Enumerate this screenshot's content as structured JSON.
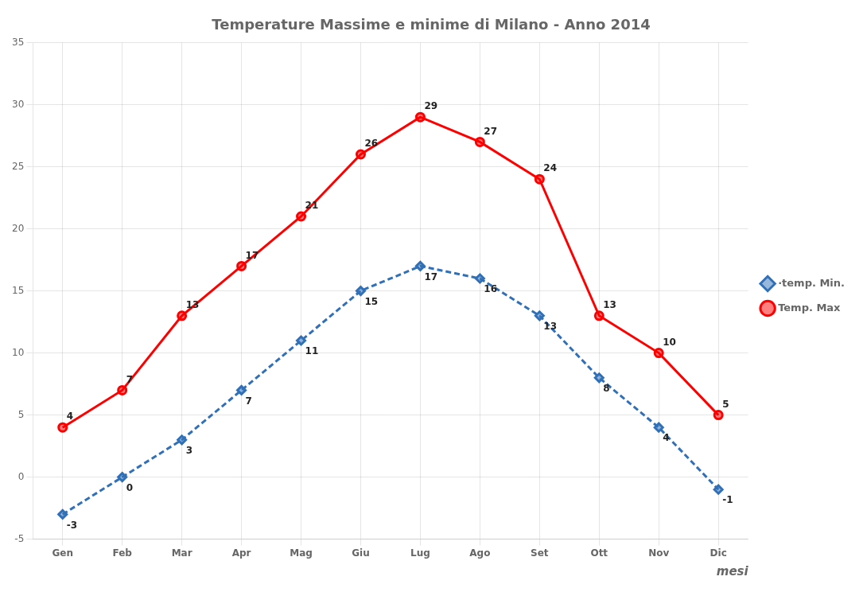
{
  "chart_data": {
    "type": "line",
    "title": "Temperature Massime e minime di Milano - Anno 2014",
    "x_label": "mesi",
    "categories": [
      "Gen",
      "Feb",
      "Mar",
      "Apr",
      "Mag",
      "Giu",
      "Lug",
      "Ago",
      "Set",
      "Ott",
      "Nov",
      "Dic"
    ],
    "series": [
      {
        "name": "Temp. Max",
        "color": "#ff0000",
        "marker": "circle",
        "line_style": "solid",
        "values": [
          4,
          7,
          13,
          17,
          21,
          26,
          29,
          27,
          24,
          13,
          10,
          5
        ]
      },
      {
        "name": "·temp. Min.",
        "color": "#3070b8",
        "marker": "diamond",
        "line_style": "dashed",
        "values": [
          -3,
          0,
          3,
          7,
          11,
          15,
          17,
          16,
          13,
          8,
          4,
          -1
        ]
      }
    ],
    "ylim": [
      -5,
      35
    ],
    "yticks": [
      -5,
      0,
      5,
      10,
      15,
      20,
      25,
      30,
      35
    ],
    "grid": true,
    "legend": "right",
    "data_labels": true
  }
}
